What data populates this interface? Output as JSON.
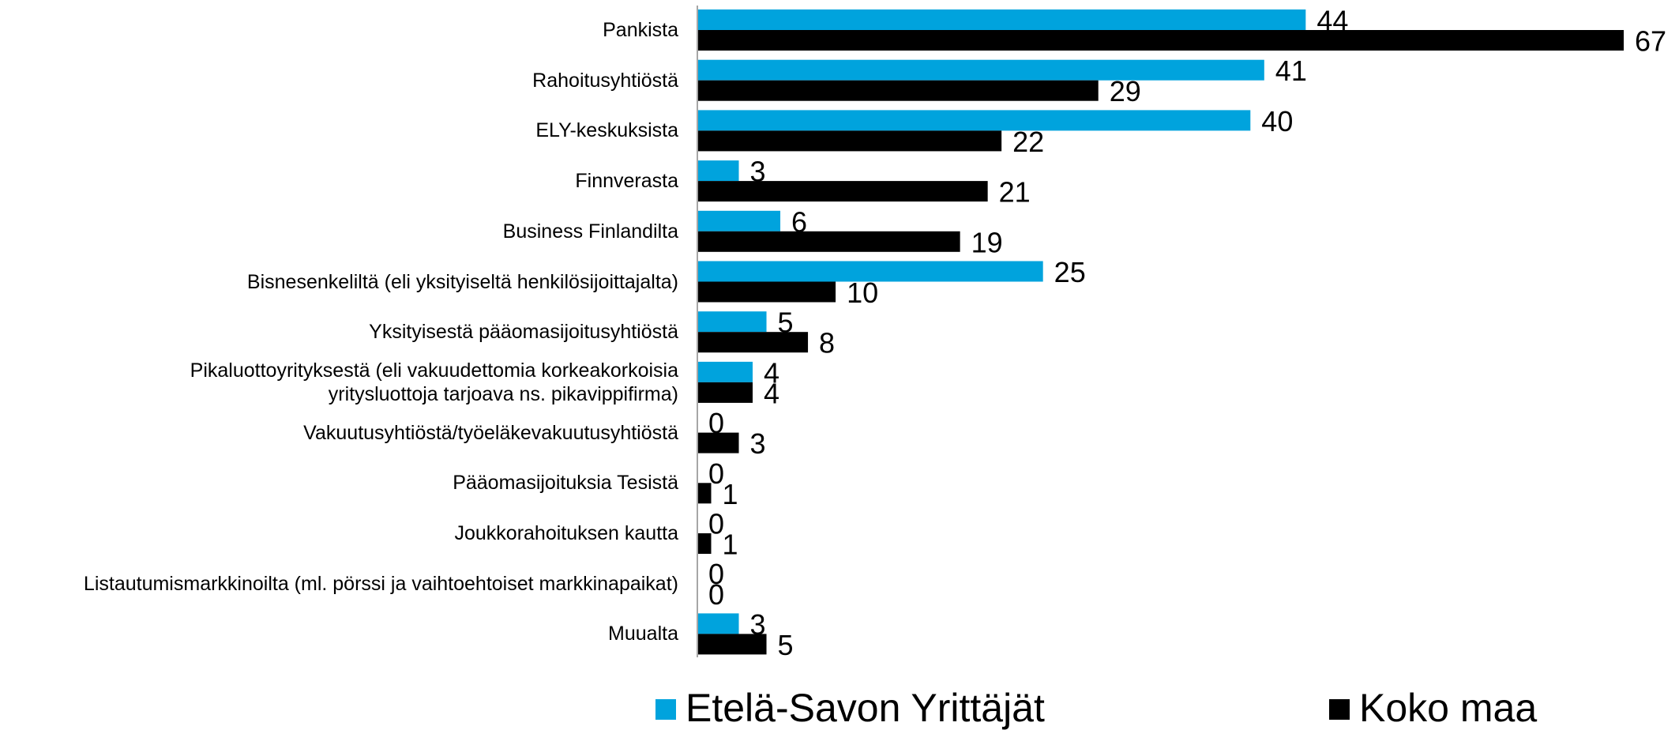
{
  "chart_data": {
    "type": "bar",
    "orientation": "horizontal",
    "categories": [
      "Pankista",
      "Rahoitusyhtiöstä",
      "ELY-keskuksista",
      "Finnverasta",
      "Business Finlandilta",
      "Bisnesenkeliltä (eli yksityiseltä henkilösijoittajalta)",
      "Yksityisestä pääomasijoitusyhtiöstä",
      "Pikaluottoyrityksestä (eli vakuudettomia korkeakorkoisia\nyritysluottoja tarjoava ns. pikavippifirma)",
      "Vakuutusyhtiöstä/työeläkevakuutusyhtiöstä",
      "Pääomasijoituksia Tesistä",
      "Joukkorahoituksen kautta",
      "Listautumismarkkinoilta (ml. pörssi ja vaihtoehtoiset markkinapaikat)",
      "Muualta"
    ],
    "series": [
      {
        "name": "Etelä-Savon Yrittäjät",
        "color": "#00a3dd",
        "values": [
          44,
          41,
          40,
          3,
          6,
          25,
          5,
          4,
          0,
          0,
          0,
          0,
          3
        ]
      },
      {
        "name": "Koko maa",
        "color": "#000000",
        "values": [
          67,
          29,
          22,
          21,
          19,
          10,
          8,
          4,
          3,
          1,
          1,
          0,
          5
        ]
      }
    ],
    "legend": "bottom"
  }
}
